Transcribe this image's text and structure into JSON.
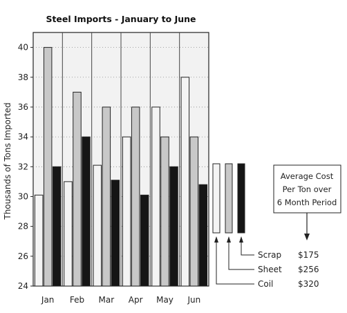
{
  "chart_data": {
    "type": "bar",
    "title": "Steel Imports - January to June",
    "ylabel": "Thousands of Tons Imported",
    "xlabel": "",
    "categories": [
      "Jan",
      "Feb",
      "Mar",
      "Apr",
      "May",
      "Jun"
    ],
    "ylim": [
      24,
      41
    ],
    "yticks": [
      24,
      26,
      28,
      30,
      32,
      34,
      36,
      38,
      40
    ],
    "grid": "dotted horizontal",
    "series": [
      {
        "name": "Coil",
        "color": "#f4f4f4",
        "values": [
          30.1,
          31.0,
          32.1,
          34.0,
          36.0,
          38.0
        ]
      },
      {
        "name": "Sheet",
        "color": "#c8c8c8",
        "values": [
          40.0,
          37.0,
          36.0,
          36.0,
          34.0,
          34.0
        ]
      },
      {
        "name": "Scrap",
        "color": "#151515",
        "values": [
          32.0,
          34.0,
          31.1,
          30.1,
          32.0,
          30.8
        ]
      }
    ],
    "legend": {
      "placement": "right",
      "items": [
        {
          "label": "Scrap",
          "cost": "$175"
        },
        {
          "label": "Sheet",
          "cost": "$256"
        },
        {
          "label": "Coil",
          "cost": "$320"
        }
      ],
      "annotation": [
        "Average Cost",
        "Per Ton over",
        "6 Month Period"
      ]
    }
  }
}
